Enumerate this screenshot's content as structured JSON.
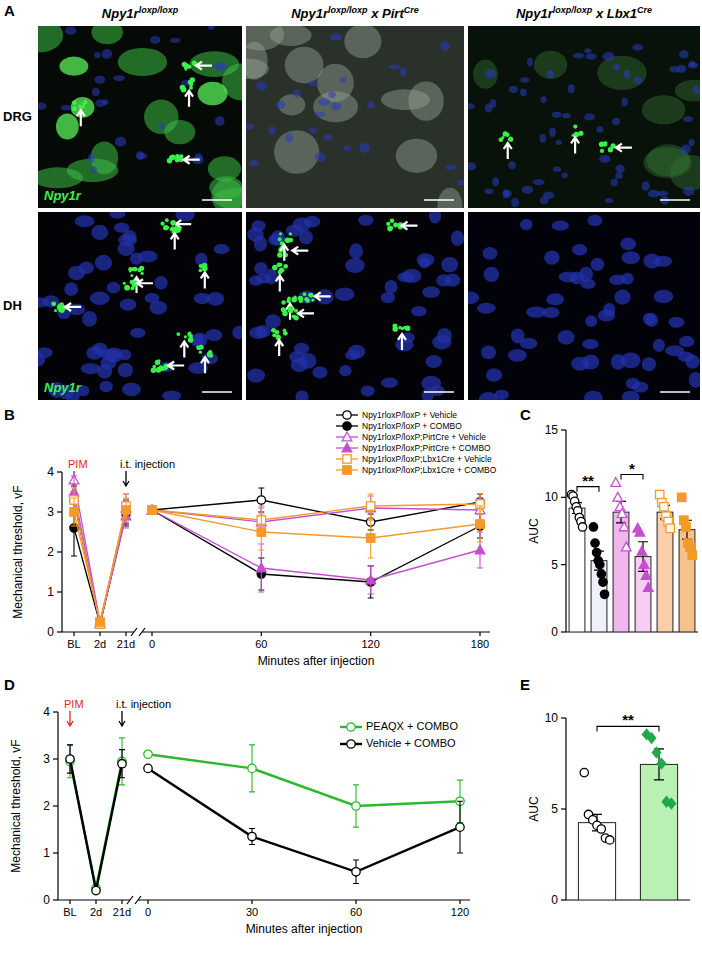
{
  "figure": {
    "panel_label": "A",
    "columns": [
      [
        "Npy1r",
        "loxp/loxp"
      ],
      [
        "Npy1r",
        "loxp/loxp",
        " x Pirt",
        "Cre"
      ],
      [
        "Npy1r",
        "loxp/loxp",
        " x Lbx1",
        "Cre"
      ]
    ],
    "rows": [
      "DRG",
      "DH"
    ],
    "stain_label": "Npy1r"
  },
  "chart_data": [
    {
      "type": "line",
      "panel_label": "B",
      "y_label": "Mechanical threshold, vF",
      "x_label": "Minutes after injection",
      "categories": [
        "BL",
        "2d",
        "21d",
        null,
        "0",
        "60",
        "120",
        "180"
      ],
      "ylim": [
        0,
        4
      ],
      "yticks": [
        0,
        1,
        2,
        3,
        4
      ],
      "legend": "top-right",
      "annotations": [
        {
          "text": "PIM",
          "at": 0,
          "color": "#e8261f"
        },
        {
          "text": "i.t. injection",
          "at": 2
        }
      ],
      "series": [
        {
          "name": "Npy1rloxP/loxP + Vehicle",
          "color": "#000000",
          "marker": "open-circle",
          "line_style": "solid",
          "values": [
            3.3,
            0.2,
            3.0,
            null,
            3.05,
            3.3,
            2.75,
            3.25
          ],
          "errors": [
            0.35,
            0.05,
            0.3,
            null,
            null,
            0.3,
            0.2,
            0.2
          ]
        },
        {
          "name": "Npy1rloxP/loxP + COMBO",
          "color": "#000000",
          "marker": "circle",
          "line_style": "solid",
          "values": [
            2.6,
            0.2,
            2.95,
            null,
            3.05,
            1.45,
            1.25,
            2.65
          ],
          "errors": [
            0.7,
            0.05,
            0.3,
            null,
            null,
            0.4,
            0.4,
            0.3
          ]
        },
        {
          "name": "Npy1rloxP/loxP;PirtCre + Vehicle",
          "color": "#c34fd0",
          "marker": "open-triangle",
          "line_style": "solid",
          "values": [
            3.8,
            0.25,
            3.1,
            null,
            3.05,
            2.75,
            3.1,
            3.05
          ],
          "errors": [
            0.3,
            0.05,
            0.35,
            null,
            null,
            0.35,
            0.3,
            0.3
          ]
        },
        {
          "name": "Npy1rloxP/loxP;PirtCre + COMBO",
          "color": "#c34fd0",
          "marker": "triangle",
          "line_style": "solid",
          "values": [
            3.5,
            0.2,
            2.9,
            null,
            3.05,
            1.6,
            1.3,
            2.05
          ],
          "errors": [
            0.4,
            0.05,
            0.3,
            null,
            null,
            0.6,
            0.35,
            0.45
          ]
        },
        {
          "name": "Npy1rloxP/loxP;Lbx1Cre + Vehicle",
          "color": "#f39a2b",
          "marker": "open-square",
          "line_style": "solid",
          "values": [
            3.3,
            0.2,
            3.15,
            null,
            3.05,
            2.8,
            3.15,
            3.2
          ],
          "errors": [
            0.3,
            0.05,
            0.3,
            null,
            null,
            0.35,
            0.3,
            0.25
          ]
        },
        {
          "name": "Npy1rloxP/loxP;Lbx1Cre + COMBO",
          "color": "#f39a2b",
          "marker": "square",
          "line_style": "solid",
          "values": [
            3.0,
            0.25,
            3.05,
            null,
            3.05,
            2.5,
            2.35,
            2.7
          ],
          "errors": [
            0.35,
            0.05,
            0.3,
            null,
            null,
            0.45,
            0.5,
            0.45
          ]
        }
      ]
    },
    {
      "type": "bar",
      "panel_label": "C",
      "y_label": "AUC",
      "tick_labels": "y",
      "categories": [
        null,
        null,
        null,
        null,
        null,
        null
      ],
      "values": [
        9.2,
        5.3,
        8.9,
        5.6,
        8.9,
        7.6
      ],
      "errors": [
        0.4,
        0.7,
        0.8,
        1.1,
        0.5,
        0.7
      ],
      "colors": [
        "#ffffff",
        "#eef0fa",
        "#f2b6ee",
        "#f7cdf3",
        "#f8cfa6",
        "#f6c28c"
      ],
      "point_colors": [
        "#000000",
        "#000000",
        "#c34fd0",
        "#c34fd0",
        "#f39a2b",
        "#f39a2b"
      ],
      "marker": [
        "open-circle",
        "circle",
        "open-triangle",
        "triangle",
        "open-square",
        "square"
      ],
      "points": [
        [
          10.2,
          10.1,
          9.7,
          9.3,
          9.0,
          8.5,
          8.2,
          7.8
        ],
        [
          7.8,
          6.6,
          5.9,
          5.3,
          5.0,
          4.3,
          3.7,
          2.8
        ],
        [
          11.1,
          10.0,
          9.3,
          8.8,
          7.8,
          6.3
        ],
        [
          7.7,
          7.4,
          6.0,
          5.0,
          4.2,
          3.3
        ],
        [
          10.2,
          9.6,
          9.3,
          8.6,
          8.2,
          7.7
        ],
        [
          10.0,
          8.3,
          7.8,
          6.6,
          6.3,
          5.7
        ]
      ],
      "ylim": [
        0,
        15
      ],
      "yticks": [
        0,
        5,
        10,
        15
      ],
      "annotations": [
        {
          "text": "**",
          "from": 0,
          "to": 1
        },
        {
          "text": "*",
          "from": 2,
          "to": 3
        }
      ]
    },
    {
      "type": "line",
      "panel_label": "D",
      "y_label": "Mechanical threshold, vF",
      "x_label": "Minutes after injection",
      "categories": [
        "BL",
        "2d",
        "21d",
        null,
        "0",
        "30",
        "60",
        "120"
      ],
      "ylim": [
        0,
        4
      ],
      "yticks": [
        0,
        1,
        2,
        3,
        4
      ],
      "legend": "top-right",
      "annotations": [
        {
          "text": "PIM",
          "at": 0,
          "color": "#e8261f"
        },
        {
          "text": "i.t. injection",
          "at": 2
        }
      ],
      "series": [
        {
          "name": "PEAQX + COMBO",
          "color": "#2eb82e",
          "marker": "open-circle",
          "line_style": "solid",
          "values": [
            2.95,
            0.25,
            2.95,
            null,
            3.1,
            2.8,
            2.0,
            2.1
          ],
          "errors": [
            0.35,
            0.05,
            0.5,
            null,
            null,
            0.5,
            0.45,
            0.45
          ]
        },
        {
          "name": "Vehicle + COMBO",
          "color": "#000000",
          "marker": "open-circle",
          "line_style": "solid",
          "values": [
            3.0,
            0.2,
            2.9,
            null,
            2.8,
            1.35,
            0.6,
            1.55
          ],
          "errors": [
            0.3,
            0.05,
            0.3,
            null,
            null,
            0.17,
            0.25,
            0.55
          ]
        }
      ]
    },
    {
      "type": "bar",
      "panel_label": "E",
      "y_label": "AUC",
      "tick_labels": "y",
      "categories": [
        null,
        null
      ],
      "values": [
        4.25,
        7.45
      ],
      "errors": [
        0.45,
        0.85
      ],
      "colors": [
        "#ffffff",
        "#b9f0b4"
      ],
      "point_colors": [
        "#000000",
        "#22a84a"
      ],
      "marker": [
        "open-circle",
        "diamond"
      ],
      "points": [
        [
          7.0,
          4.7,
          4.4,
          4.1,
          3.9,
          3.4,
          3.3
        ],
        [
          9.1,
          8.9,
          8.1,
          7.5,
          5.4,
          5.3
        ]
      ],
      "ylim": [
        0,
        10
      ],
      "yticks": [
        0,
        5,
        10
      ],
      "annotations": [
        {
          "text": "**",
          "from": 0,
          "to": 1
        }
      ]
    }
  ]
}
